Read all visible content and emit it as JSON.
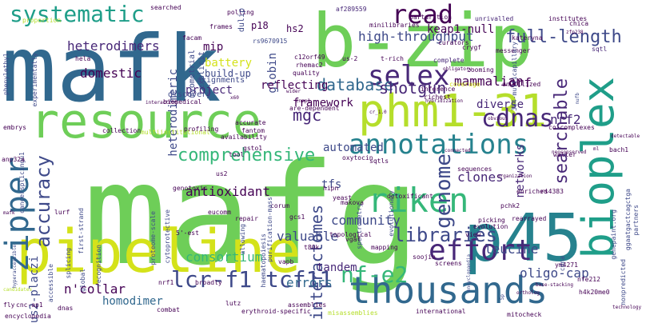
{
  "palette": {
    "background": "#ffffff",
    "colors": [
      "#440154",
      "#482878",
      "#3e4989",
      "#31688e",
      "#26828e",
      "#1f9e89",
      "#35b779",
      "#6ece58",
      "#b5de2b",
      "#d4e21a"
    ]
  },
  "words": [
    "mafg",
    "mafk",
    "b-zip",
    "pipeline",
    "p45",
    "resource",
    "phm1-31",
    "thousands",
    "bioplex",
    "riken",
    "zipper",
    "annotations",
    "cdnas",
    "selex",
    "read",
    "effort",
    "nf-e2",
    "lcr-f1 tcf11",
    "systematic",
    "full-length",
    "libraries",
    "genome",
    "comprehensive",
    "accuracy",
    "searchable",
    "database",
    "interactomes",
    "shotgun",
    "mammalian",
    "high-throughput",
    "keap1-null",
    "heterodimers",
    "consortium",
    "antioxidant",
    "nrf2",
    "leucine",
    "diverse",
    "mgc",
    "community",
    "automated",
    "tfs",
    "domestic",
    "orf",
    "tandem",
    "errors",
    "valuable",
    "oligo-cap",
    "n'collar",
    "homodimer",
    "networks",
    "nus2-placzi",
    "heterodimeric",
    "globin",
    "project",
    "clones",
    "hs2",
    "framework",
    "reflecting",
    "p18",
    "rs9670915",
    "af289559",
    "searched",
    "polling",
    "facam",
    "mip",
    "battery",
    "build-up",
    "alignments",
    "discovery",
    "biomedical",
    "myometrial",
    "explicit",
    "complete",
    "curators",
    "messenger",
    "crygf",
    "kateryna",
    "sqtl",
    "us-2",
    "t-rich",
    "c12orf49",
    "rhemac2",
    "quality",
    "minilibraries",
    "parturition",
    "unrivalled",
    "institutes",
    "chica",
    "zfp238",
    "proportion",
    "hela",
    "phenylethyl",
    "experimentally",
    "interacting",
    "wider",
    "cnmp1",
    "are-dependent",
    "cr_1.0",
    "inference",
    "richest",
    "unutilized",
    "coverage",
    "obvious",
    "obligatory",
    "zooming",
    "multiinstitutional",
    "availability",
    "accurate",
    "fantom",
    "gsto1",
    "oxytocin",
    "yeast",
    "makova",
    "bach1",
    "walter",
    "genepaint.org",
    "ggaatgactcagctga",
    "partners",
    "rs4383",
    "pchk2",
    "rearrayed",
    "enriched",
    "detoxificant",
    "hipn",
    "spectrometry",
    "evolutionary",
    "eucomm",
    "corum",
    "repair",
    "topological",
    "t80k",
    "gcs1",
    "proteome-scale",
    "first-strand",
    "cytoprotective",
    "splicing",
    "recognition",
    "purification-mass",
    "cancersplicingu1",
    "anp32a",
    "lurf",
    "accessible",
    "cnc-ap1",
    "encyclopedia",
    "global",
    "dnas",
    "nrf1",
    "broadly",
    "combat",
    "5'-est",
    "haematopoiesis",
    "erythroid-specific",
    "lutz",
    "vgaf",
    "mapping",
    "vapb",
    "soojin",
    "screens",
    "assemblies",
    "misassemblies",
    "international",
    "mitocheck",
    "nfe212",
    "h4k20me0",
    "ym4271",
    "cdna",
    "base-stacking",
    "nonpredicted",
    "sqtls",
    "sequences",
    "picking",
    "evolution",
    "view",
    "co-complexes",
    "allowing",
    "profiling",
    "embrys",
    "us2",
    "genotoxic",
    "collection",
    "tool",
    "dulip",
    "frames",
    "384-multicapillary",
    "hybridization",
    "ortholog",
    "technology",
    "candidates",
    "hyperaccessible",
    "connected",
    "encyclopaedia",
    "organization",
    "nufb",
    "x60",
    "neoconserved",
    "5p",
    "fly",
    "ml",
    "detectable",
    "mafk"
  ]
}
